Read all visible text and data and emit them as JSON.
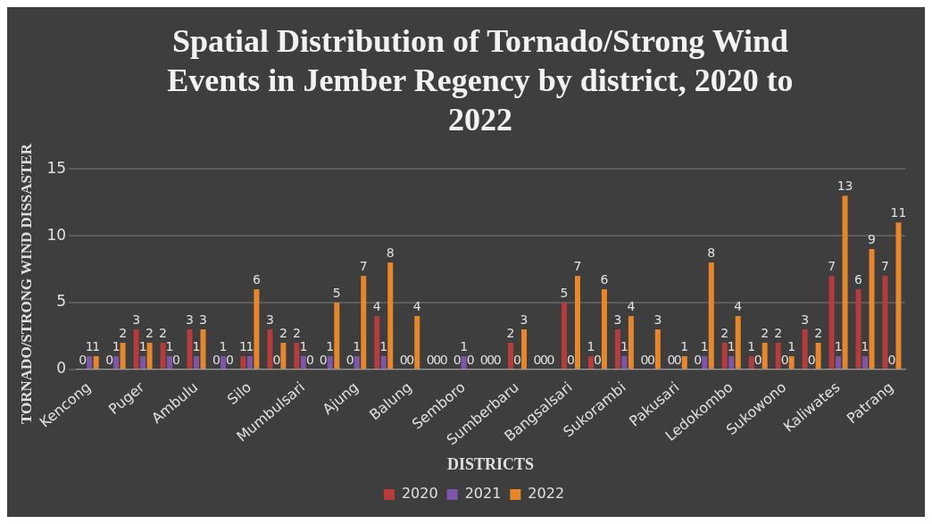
{
  "chart_data": {
    "type": "bar",
    "title": "Spatial Distribution of Tornado/Strong Wind Events in Jember Regency by district, 2020 to 2022",
    "xlabel": "DISTRICTS",
    "ylabel": "TORNADO/STRONG WIND DISSASTER",
    "categories": [
      "Kencong",
      null,
      "Puger",
      null,
      "Ambulu",
      null,
      "Silo",
      null,
      "Mumbulsari",
      null,
      "Ajung",
      null,
      "Balung",
      null,
      "Semboro",
      null,
      "Sumberbaru",
      null,
      "Bangsalsari",
      null,
      "Sukorambi",
      null,
      "Pakusari",
      null,
      "Ledokombo",
      null,
      "Sukowono",
      null,
      "Kaliwates",
      null,
      "Patrang"
    ],
    "series": [
      {
        "name": "2020",
        "color": "#b83b3b",
        "values": [
          0,
          0,
          3,
          2,
          3,
          0,
          1,
          3,
          2,
          0,
          0,
          4,
          0,
          0,
          0,
          0,
          2,
          0,
          5,
          1,
          3,
          0,
          0,
          0,
          2,
          1,
          2,
          3,
          7,
          6,
          7
        ]
      },
      {
        "name": "2021",
        "color": "#7d55aa",
        "values": [
          1,
          1,
          1,
          1,
          1,
          1,
          1,
          0,
          1,
          1,
          1,
          1,
          0,
          0,
          1,
          0,
          0,
          0,
          0,
          0,
          1,
          0,
          0,
          1,
          1,
          0,
          0,
          0,
          1,
          1,
          0
        ]
      },
      {
        "name": "2022",
        "color": "#e8862a",
        "values": [
          1,
          2,
          2,
          0,
          3,
          0,
          6,
          2,
          0,
          5,
          7,
          8,
          4,
          0,
          0,
          0,
          3,
          0,
          7,
          6,
          4,
          3,
          1,
          8,
          4,
          2,
          1,
          2,
          13,
          9,
          11
        ]
      }
    ],
    "ylim": [
      0,
      15
    ],
    "yticks": [
      0,
      5,
      10,
      15
    ],
    "grid": "y",
    "legend": "bottom",
    "data_labels": true
  }
}
